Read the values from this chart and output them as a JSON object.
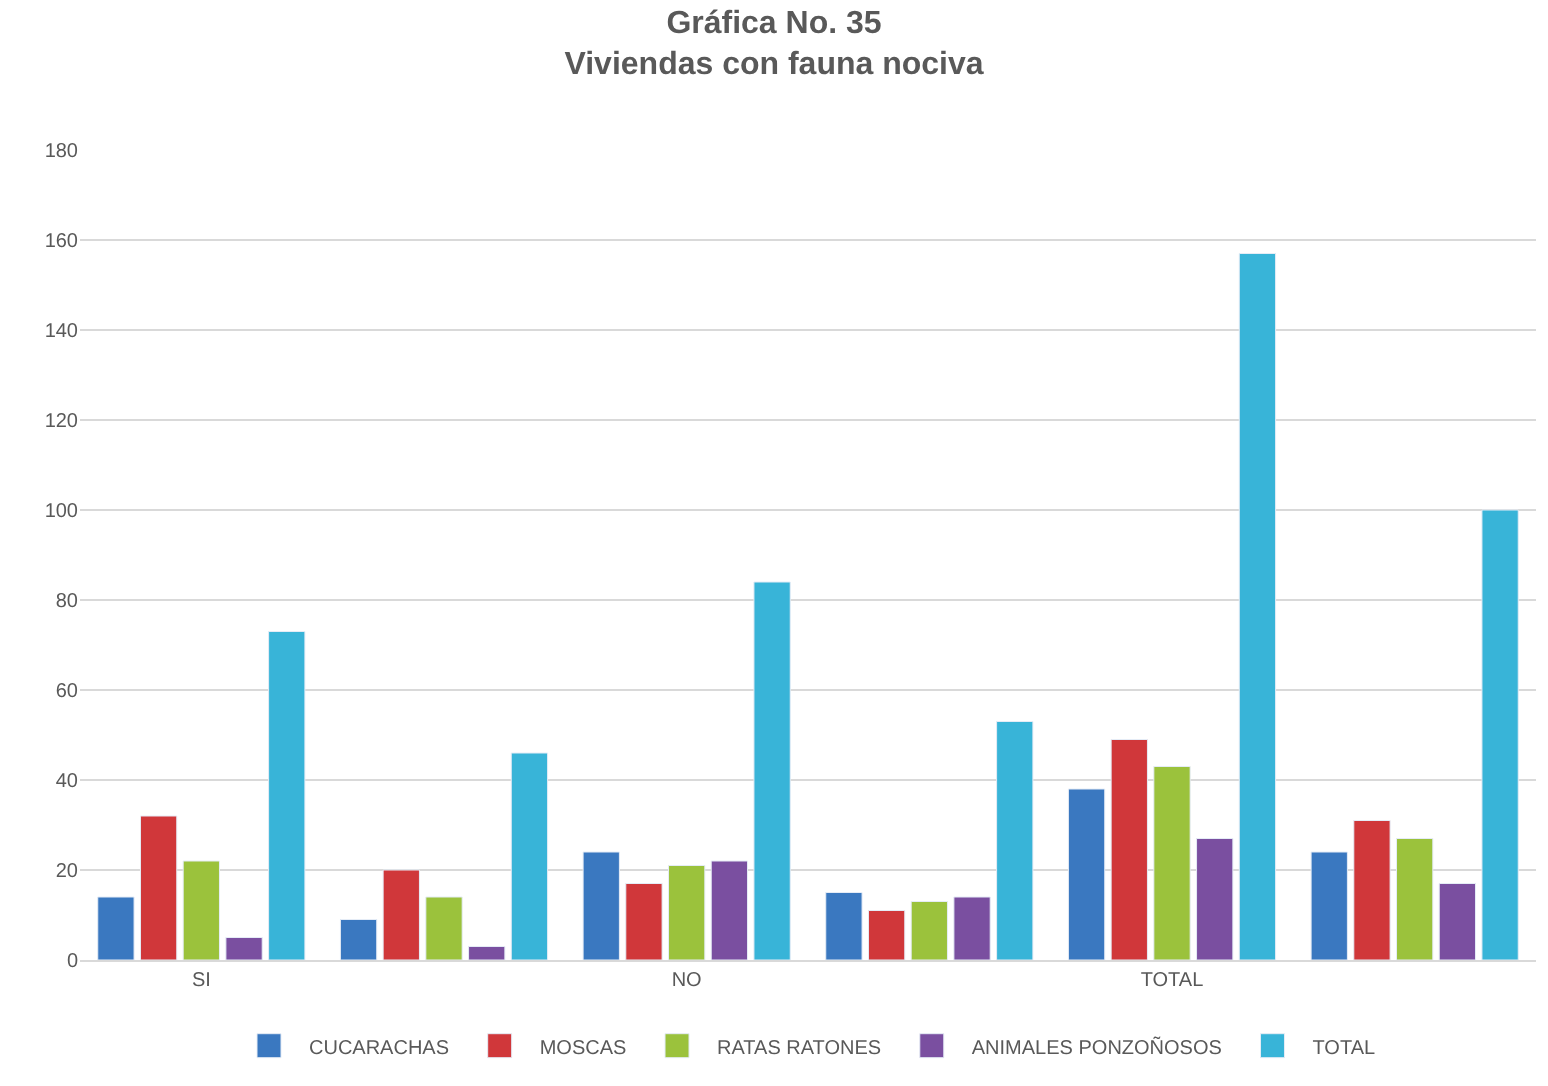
{
  "chart_data": {
    "type": "bar",
    "title": "Gráfica No. 35\nViviendas con fauna nociva",
    "categories": [
      "SI",
      null,
      "NO",
      null,
      "TOTAL",
      null
    ],
    "series": [
      {
        "name": "CUCARACHAS",
        "color": "#3a78c0",
        "values": [
          14,
          9,
          24,
          15,
          38,
          24
        ]
      },
      {
        "name": "MOSCAS",
        "color": "#d0373a",
        "values": [
          32,
          20,
          17,
          11,
          49,
          31
        ]
      },
      {
        "name": "RATAS RATONES",
        "color": "#9bc23c",
        "values": [
          22,
          14,
          21,
          13,
          43,
          27
        ]
      },
      {
        "name": "ANIMALES PONZOÑOSOS",
        "color": "#7a4fa0",
        "values": [
          5,
          3,
          22,
          14,
          27,
          17
        ]
      },
      {
        "name": "TOTAL",
        "color": "#38b4d8",
        "values": [
          73,
          46,
          84,
          53,
          157,
          100
        ]
      }
    ],
    "ylim": [
      0,
      180
    ],
    "yticks": [
      0,
      20,
      40,
      60,
      80,
      100,
      120,
      140,
      160,
      180
    ],
    "grid": "y",
    "legend": "bottom"
  }
}
